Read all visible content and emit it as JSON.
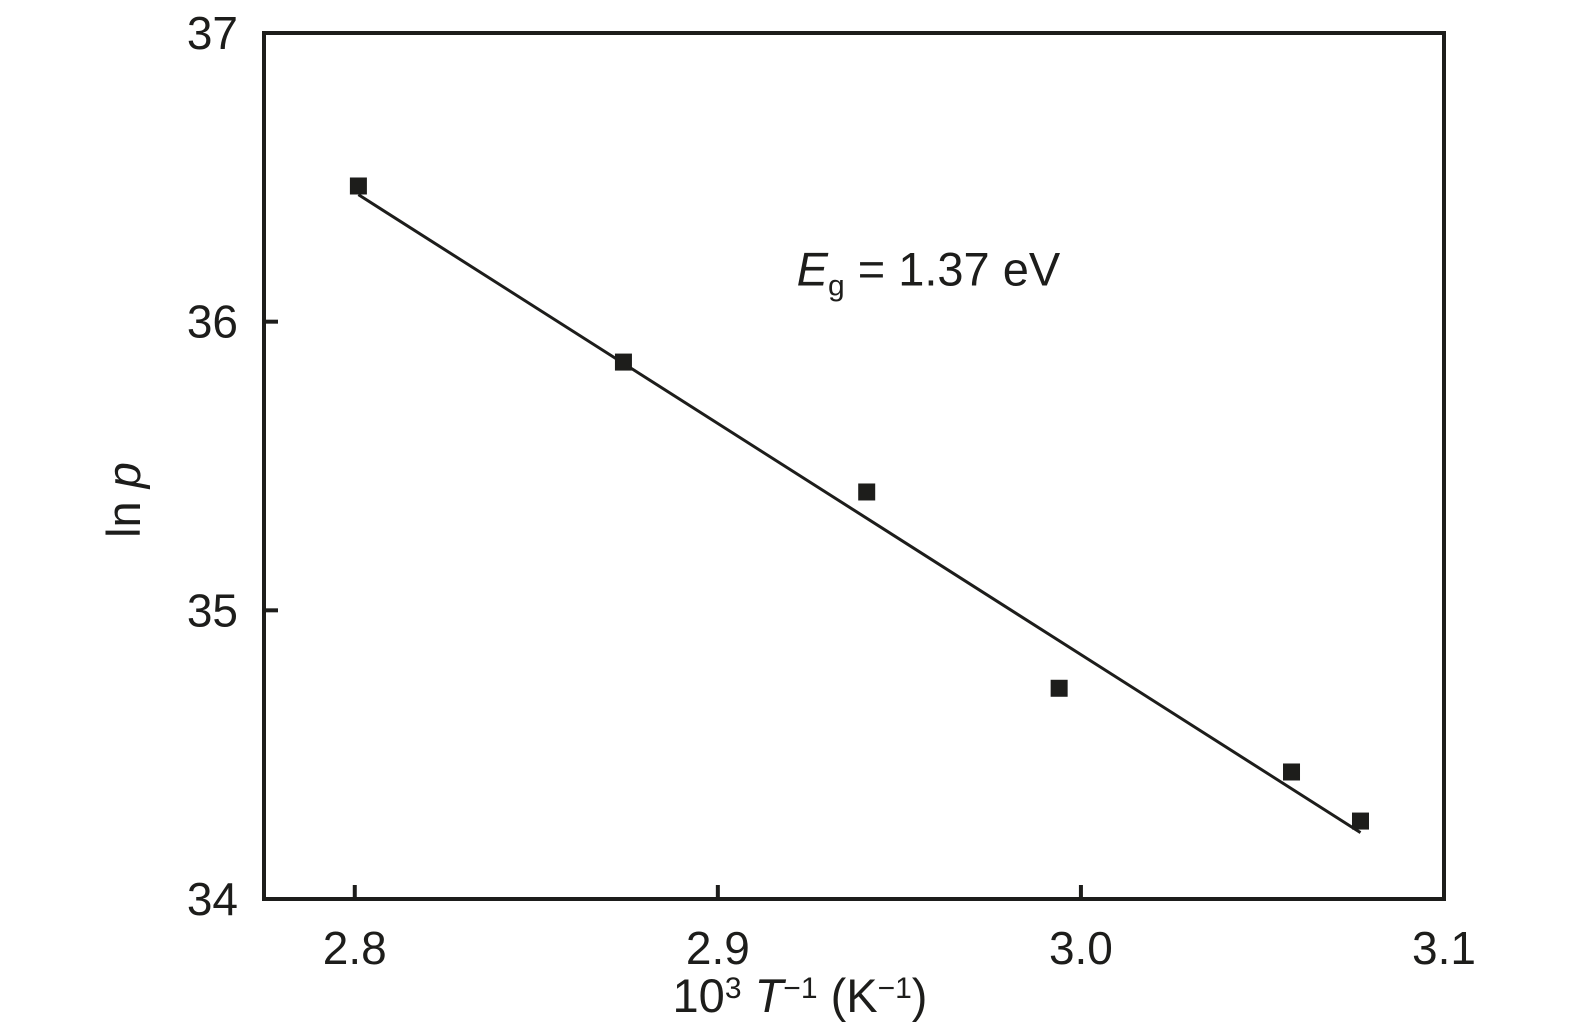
{
  "figure": {
    "background_color": "#ffffff",
    "ink_color": "#1d1d1b"
  },
  "chart_data": {
    "type": "scatter",
    "title": "",
    "xlabel": {
      "plain": "10³ T⁻¹ (K⁻¹)",
      "parts": [
        {
          "t": "10"
        },
        {
          "t": "3",
          "sup": true
        },
        {
          "t": " "
        },
        {
          "t": "T",
          "italic": true
        },
        {
          "t": "−1",
          "sup": true
        },
        {
          "t": " (K"
        },
        {
          "t": "−1",
          "sup": true
        },
        {
          "t": ")"
        }
      ]
    },
    "ylabel": {
      "plain": "ln p",
      "parts": [
        {
          "t": "ln "
        },
        {
          "t": "p",
          "italic": true
        }
      ]
    },
    "xlim": [
      2.775,
      3.1
    ],
    "ylim": [
      34,
      37
    ],
    "x_ticks": [
      2.8,
      2.9,
      3.0,
      3.1
    ],
    "x_tick_labels": [
      "2.8",
      "2.9",
      "3.0",
      "3.1"
    ],
    "y_ticks": [
      34,
      35,
      36,
      37
    ],
    "y_tick_labels": [
      "34",
      "35",
      "36",
      "37"
    ],
    "grid": false,
    "legend": "none",
    "series": [
      {
        "name": "data",
        "marker": "filled-square",
        "color": "#1d1d1b",
        "points": [
          [
            2.801,
            36.47
          ],
          [
            2.874,
            35.86
          ],
          [
            2.941,
            35.41
          ],
          [
            2.994,
            34.73
          ],
          [
            3.058,
            34.44
          ],
          [
            3.077,
            34.27
          ]
        ]
      }
    ],
    "fit_line": {
      "type": "linear-fit",
      "color": "#1d1d1b",
      "endpoints": [
        [
          2.801,
          36.44
        ],
        [
          3.077,
          34.23
        ]
      ]
    },
    "annotation": {
      "plain": "Eg = 1.37 eV",
      "x": 2.958,
      "y": 36.18,
      "parts": [
        {
          "t": "E",
          "italic": true
        },
        {
          "t": "g",
          "sub": true
        },
        {
          "t": " = 1.37 eV"
        }
      ]
    }
  }
}
